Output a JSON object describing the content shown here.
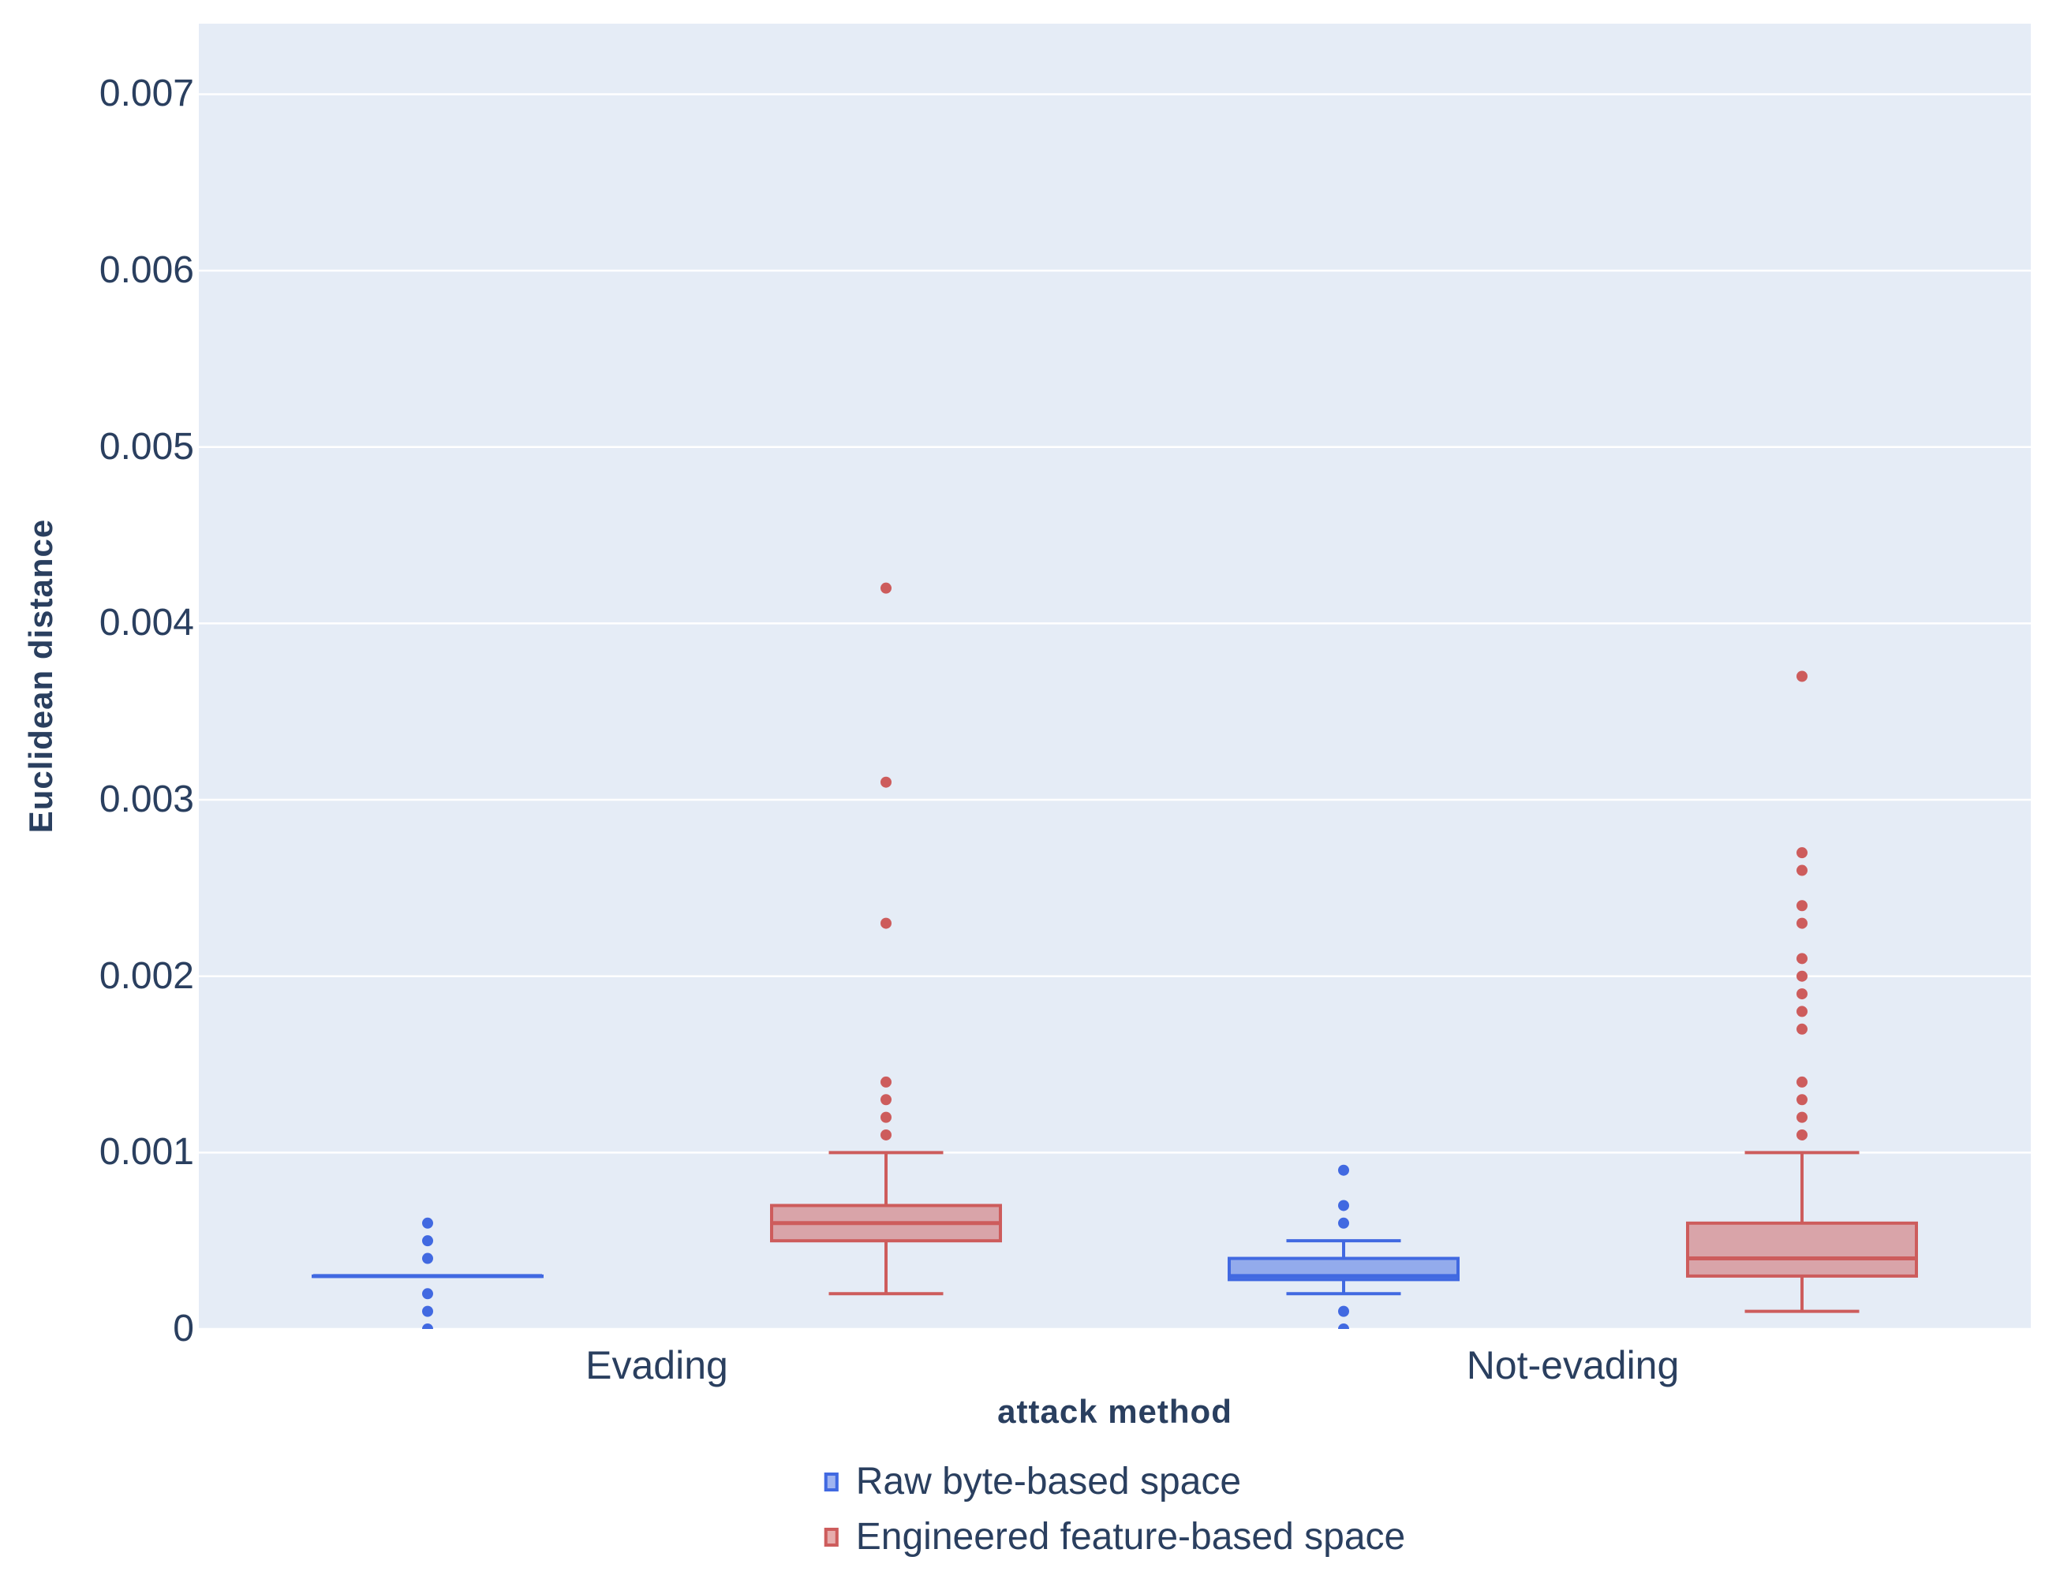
{
  "styles": {
    "page_bg": "#FFFFFF",
    "plot_bg": "#E5ECF6",
    "grid_color": "#FFFFFF",
    "text_color": "#2a3f5f",
    "blue_accent": "#4169E1",
    "red_accent": "#CD5C5C"
  },
  "chart_data": {
    "type": "box",
    "title": "",
    "xlabel": "attack method",
    "ylabel": "Euclidean distance",
    "categories": [
      "Evading",
      "Not-evading"
    ],
    "y_ticks": [
      0,
      0.001,
      0.002,
      0.003,
      0.004,
      0.005,
      0.006,
      0.007
    ],
    "y_range": [
      0,
      0.0074
    ],
    "grid": true,
    "legend_position": "bottom-center",
    "series": [
      {
        "name": "Raw byte-based space",
        "color": "#4169E1",
        "fill": "rgba(65,105,225,0.5)",
        "boxes": [
          {
            "category": "Evading",
            "lower_whisker": 0.0003,
            "q1": 0.0003,
            "median": 0.0003,
            "q3": 0.0003,
            "upper_whisker": 0.0003,
            "outliers": [
              0.0006,
              0.0005,
              0.0004,
              0.0002,
              0.0001,
              0
            ]
          },
          {
            "category": "Not-evading",
            "lower_whisker": 0.0002,
            "q1": 0.00028,
            "median": 0.0003,
            "q3": 0.0004,
            "upper_whisker": 0.0005,
            "outliers": [
              0.0009,
              0.0007,
              0.0006,
              0.0001,
              0
            ]
          }
        ]
      },
      {
        "name": "Engineered feature-based space",
        "color": "#CD5C5C",
        "fill": "rgba(205,92,92,0.5)",
        "boxes": [
          {
            "category": "Evading",
            "lower_whisker": 0.0002,
            "q1": 0.0005,
            "median": 0.0006,
            "q3": 0.0007,
            "upper_whisker": 0.001,
            "outliers": [
              0.0042,
              0.0031,
              0.0023,
              0.0014,
              0.0013,
              0.0012,
              0.0011
            ]
          },
          {
            "category": "Not-evading",
            "lower_whisker": 0.0001,
            "q1": 0.0003,
            "median": 0.0004,
            "q3": 0.0006,
            "upper_whisker": 0.001,
            "outliers": [
              0.0037,
              0.0027,
              0.0026,
              0.0024,
              0.0023,
              0.0021,
              0.002,
              0.0019,
              0.0018,
              0.0017,
              0.0014,
              0.0013,
              0.0012,
              0.0011
            ]
          }
        ]
      }
    ]
  }
}
